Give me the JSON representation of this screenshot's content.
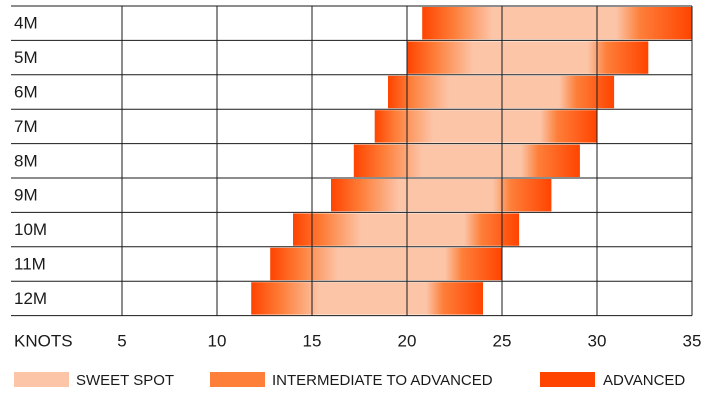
{
  "chart_data": {
    "type": "bar",
    "subtype": "horizontal-floating-range",
    "categories": [
      "4M",
      "5M",
      "6M",
      "7M",
      "8M",
      "9M",
      "10M",
      "11M",
      "12M"
    ],
    "xlabel": "KNOTS",
    "xlim": [
      0,
      35
    ],
    "xticks": [
      5,
      10,
      15,
      20,
      25,
      30,
      35
    ],
    "grid": true,
    "legend_position": "bottom",
    "series": [
      {
        "name": "ADVANCED",
        "values": [
          [
            20.8,
            22.5
          ],
          [
            20.0,
            21.5
          ],
          [
            19.0,
            20.2
          ],
          [
            18.3,
            19.4
          ],
          [
            17.2,
            18.8
          ],
          [
            16.0,
            17.6
          ],
          [
            14.0,
            15.6
          ],
          [
            12.8,
            14.4
          ],
          [
            11.8,
            13.4
          ]
        ]
      },
      {
        "name": "INTERMEDIATE TO ADVANCED",
        "values": [
          [
            22.5,
            24.5
          ],
          [
            21.5,
            23.5
          ],
          [
            20.2,
            22.2
          ],
          [
            19.4,
            21.4
          ],
          [
            18.8,
            20.8
          ],
          [
            17.6,
            19.6
          ],
          [
            15.6,
            17.6
          ],
          [
            14.4,
            16.4
          ],
          [
            13.4,
            15.4
          ]
        ]
      },
      {
        "name": "SWEET SPOT",
        "values": [
          [
            24.5,
            31.0
          ],
          [
            23.5,
            29.5
          ],
          [
            22.2,
            28.0
          ],
          [
            21.4,
            27.0
          ],
          [
            20.8,
            26.0
          ],
          [
            19.6,
            24.5
          ],
          [
            17.6,
            23.0
          ],
          [
            16.4,
            22.0
          ],
          [
            15.4,
            21.0
          ]
        ]
      },
      {
        "name": "INTERMEDIATE TO ADVANCED",
        "values": [
          [
            31.0,
            33.5
          ],
          [
            29.5,
            31.5
          ],
          [
            28.0,
            29.8
          ],
          [
            27.0,
            28.8
          ],
          [
            26.0,
            27.8
          ],
          [
            24.5,
            26.4
          ],
          [
            23.0,
            24.8
          ],
          [
            22.0,
            23.8
          ],
          [
            21.0,
            22.8
          ]
        ]
      },
      {
        "name": "ADVANCED",
        "values": [
          [
            33.5,
            35.0
          ],
          [
            31.5,
            32.7
          ],
          [
            29.8,
            30.9
          ],
          [
            28.8,
            30.0
          ],
          [
            27.8,
            29.1
          ],
          [
            26.4,
            27.6
          ],
          [
            24.8,
            25.9
          ],
          [
            23.8,
            25.0
          ],
          [
            22.8,
            24.0
          ]
        ]
      }
    ],
    "ranges": [
      {
        "size": "4M",
        "min": 20.8,
        "max": 35.0
      },
      {
        "size": "5M",
        "min": 20.0,
        "max": 32.7
      },
      {
        "size": "6M",
        "min": 19.0,
        "max": 30.9
      },
      {
        "size": "7M",
        "min": 18.3,
        "max": 30.0
      },
      {
        "size": "8M",
        "min": 17.2,
        "max": 29.1
      },
      {
        "size": "9M",
        "min": 16.0,
        "max": 27.6
      },
      {
        "size": "10M",
        "min": 14.0,
        "max": 25.9
      },
      {
        "size": "11M",
        "min": 12.8,
        "max": 25.0
      },
      {
        "size": "12M",
        "min": 11.8,
        "max": 24.0
      }
    ],
    "legend": [
      {
        "label": "SWEET SPOT",
        "color": "#fcc5a8"
      },
      {
        "label": "INTERMEDIATE TO ADVANCED",
        "color": "#fd7f3a"
      },
      {
        "label": "ADVANCED",
        "color": "#ff4400"
      }
    ]
  },
  "colors": {
    "sweet_spot": "#fcc5a8",
    "intermediate": "#fd7f3a",
    "advanced": "#ff4400",
    "grid": "#1a1a1a"
  }
}
